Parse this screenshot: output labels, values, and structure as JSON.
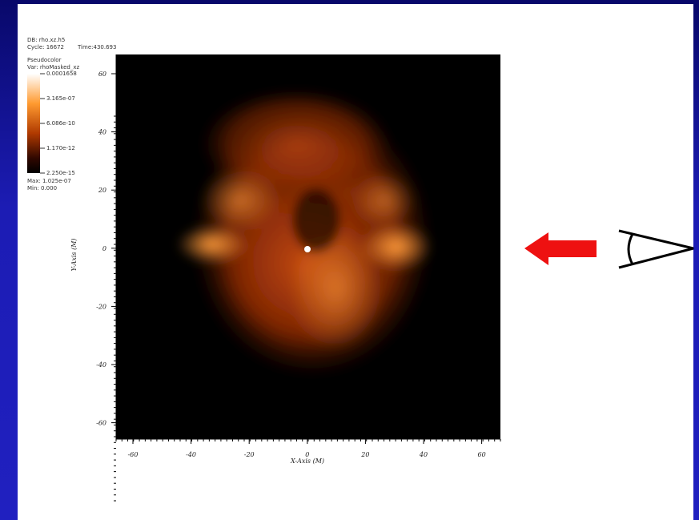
{
  "header": {
    "db": "DB: rho.xz.h5",
    "cycle": "Cycle: 16672",
    "time": "Time:430.693",
    "plot": "Pseudocolor",
    "var": "Var: rhoMasked_xz"
  },
  "legend": {
    "labels": [
      "0.0001658",
      "3.165e-07",
      "6.086e-10",
      "1.170e-12",
      "2.250e-15"
    ],
    "max": "Max: 1.025e-07",
    "min": "Min: 0.000"
  },
  "axes": {
    "x_title": "X-Axis (M)",
    "y_title": "Y-Axis (M)",
    "x_ticks": [
      "-60",
      "-40",
      "-20",
      "0",
      "20",
      "40",
      "60"
    ],
    "y_ticks": [
      "60",
      "40",
      "20",
      "0",
      "-20",
      "-40",
      "-60"
    ]
  }
}
